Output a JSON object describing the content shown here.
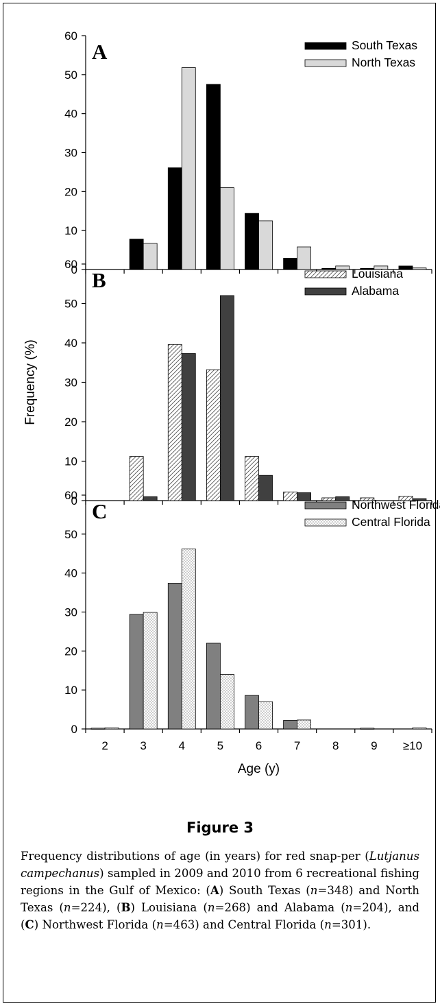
{
  "figure": {
    "title": "Figure 3",
    "caption": {
      "c1": "Frequency distributions of age (in years) for red snap-per (",
      "species": "Lutjanus campechanus",
      "c2": ") sampled in 2009 and 2010 from 6 recreational fishing regions in the Gulf of Mexico: (",
      "la": "A",
      "c3": ") South Texas (",
      "n1": "n",
      "c4": "=348) and North Texas (",
      "n2": "n",
      "c5": "=224), (",
      "lb": "B",
      "c6": ") Louisiana (",
      "n3": "n",
      "c7": "=268) and Alabama (",
      "n4": "n",
      "c8": "=204), and (",
      "lc": "C",
      "c9": ") Northwest Florida (",
      "n5": "n",
      "c10": "=463) and Central Florida (",
      "n6": "n",
      "c11": "=301)."
    }
  },
  "chart_data": [
    {
      "type": "bar",
      "panel_label": "A",
      "categories": [
        "2",
        "3",
        "4",
        "5",
        "6",
        "7",
        "8",
        "9",
        "≥10"
      ],
      "series": [
        {
          "name": "South Texas",
          "color": "#000000",
          "fill": "solid",
          "values": [
            0,
            7.8,
            26.1,
            47.5,
            14.4,
            2.9,
            0.3,
            0.3,
            0.9
          ]
        },
        {
          "name": "North Texas",
          "color": "#d9d9d9",
          "fill": "solid",
          "values": [
            0,
            6.7,
            51.8,
            21.0,
            12.5,
            5.8,
            0.9,
            0.9,
            0.4
          ]
        }
      ],
      "ylim": [
        0,
        60
      ],
      "yticks": [
        "0",
        "10",
        "20",
        "30",
        "40",
        "50",
        "60"
      ],
      "legend": "top-right"
    },
    {
      "type": "bar",
      "panel_label": "B",
      "categories": [
        "2",
        "3",
        "4",
        "5",
        "6",
        "7",
        "8",
        "9",
        "≥10"
      ],
      "series": [
        {
          "name": "Louisiana",
          "color": "#ffffff",
          "fill": "hatch",
          "values": [
            0,
            11.2,
            39.6,
            33.2,
            11.2,
            2.2,
            0.7,
            0.7,
            1.1
          ]
        },
        {
          "name": "Alabama",
          "color": "#404040",
          "fill": "solid",
          "values": [
            0,
            1.0,
            37.3,
            52.0,
            6.4,
            2.0,
            1.0,
            0,
            0.5
          ]
        }
      ],
      "ylim": [
        0,
        60
      ],
      "yticks": [
        "0",
        "10",
        "20",
        "30",
        "40",
        "50",
        "60"
      ],
      "ylabel": "Frequency (%)",
      "legend": "top-right"
    },
    {
      "type": "bar",
      "panel_label": "C",
      "categories": [
        "2",
        "3",
        "4",
        "5",
        "6",
        "7",
        "8",
        "9",
        "≥10"
      ],
      "series": [
        {
          "name": "Northwest Florida",
          "color": "#808080",
          "fill": "solid",
          "values": [
            0.2,
            29.4,
            37.4,
            22.0,
            8.6,
            2.2,
            0,
            0.2,
            0
          ]
        },
        {
          "name": "Central Florida",
          "color": "#ffffff",
          "fill": "dots",
          "values": [
            0.3,
            29.9,
            46.2,
            14.0,
            7.0,
            2.3,
            0,
            0,
            0.3
          ]
        }
      ],
      "ylim": [
        0,
        60
      ],
      "yticks": [
        "0",
        "10",
        "20",
        "30",
        "40",
        "50",
        "60"
      ],
      "xlabel": "Age (y)",
      "legend": "top-right"
    }
  ]
}
